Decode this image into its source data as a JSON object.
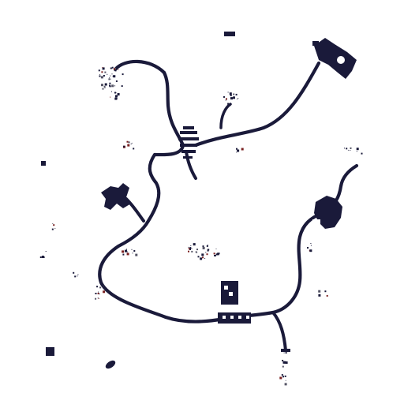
{
  "colors": {
    "background": "#ffffff",
    "line": "#1a1a3a",
    "speckle_red": "#7a2020",
    "speckle_gray": "#555566"
  }
}
